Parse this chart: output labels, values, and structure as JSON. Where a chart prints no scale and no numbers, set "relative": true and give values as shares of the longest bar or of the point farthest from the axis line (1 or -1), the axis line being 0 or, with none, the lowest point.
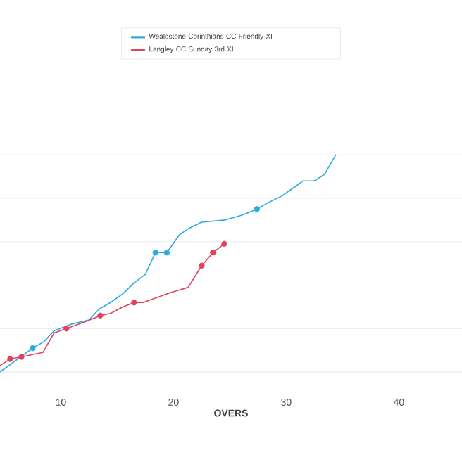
{
  "chart_data": {
    "type": "line",
    "xlabel": "OVERS",
    "relative": true,
    "xlim": [
      4.6,
      45.6
    ],
    "xticks": [
      10,
      20,
      30,
      40
    ],
    "grid": "y",
    "legend": "top",
    "line_style": "solid",
    "series": [
      {
        "name": "Wealdstone Corinthians CC Friendly XI",
        "color": "#29abe2",
        "x": [
          4.6,
          7.5,
          8.5,
          9.4,
          10.9,
          12.5,
          13.4,
          14.4,
          15.5,
          16.5,
          17.5,
          18.4,
          19.4,
          20.5,
          21.3,
          22.5,
          24.6,
          25.9,
          26.5,
          27.4,
          28.4,
          29.6,
          30.7,
          31.5,
          32.5,
          33.4,
          34.4
        ],
        "values": [
          0,
          0.11,
          0.14,
          0.19,
          0.22,
          0.24,
          0.29,
          0.32,
          0.36,
          0.41,
          0.45,
          0.55,
          0.55,
          0.63,
          0.66,
          0.69,
          0.7,
          0.72,
          0.73,
          0.75,
          0.78,
          0.81,
          0.85,
          0.88,
          0.88,
          0.91,
          1
        ]
      },
      {
        "name": "Langley CC Sunday 3rd XI",
        "color": "#e0435a",
        "x": [
          4.6,
          5.5,
          6.5,
          8.4,
          9.4,
          10.5,
          12.1,
          13.5,
          14.4,
          15.5,
          16.5,
          17.3,
          19.4,
          21.3,
          22.5,
          23.5,
          24.5
        ],
        "values": [
          0.03,
          0.06,
          0.07,
          0.09,
          0.18,
          0.2,
          0.23,
          0.26,
          0.27,
          0.3,
          0.32,
          0.32,
          0.36,
          0.39,
          0.49,
          0.55,
          0.59
        ]
      },
      {
        "type": "scatter",
        "color": "#29abe2",
        "x": [
          7.5,
          18.4,
          19.4,
          27.4
        ],
        "values": [
          0.11,
          0.55,
          0.55,
          0.75
        ]
      },
      {
        "type": "scatter",
        "color": "#e0435a",
        "x": [
          5.5,
          6.5,
          10.5,
          13.5,
          16.5,
          22.5,
          23.5,
          24.5
        ],
        "values": [
          0.06,
          0.07,
          0.2,
          0.26,
          0.32,
          0.49,
          0.55,
          0.59
        ]
      }
    ]
  }
}
